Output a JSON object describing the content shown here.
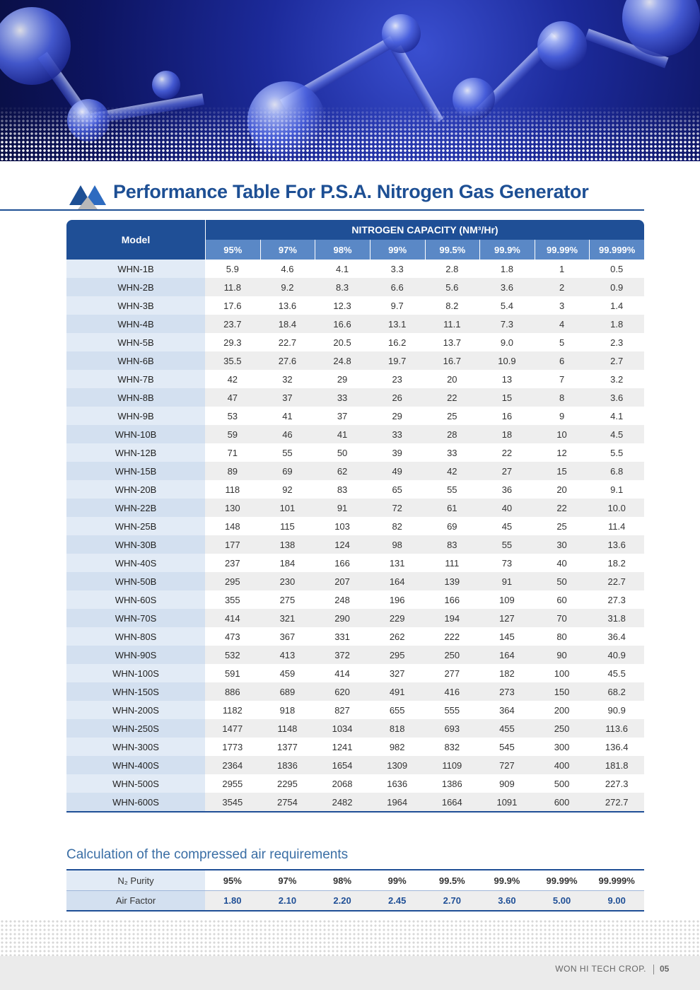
{
  "header": {
    "title": "Performance Table For P.S.A. Nitrogen Gas Generator"
  },
  "table": {
    "model_header": "Model",
    "capacity_header": "NITROGEN CAPACITY (NM³/Hr)",
    "purities": [
      "95%",
      "97%",
      "98%",
      "99%",
      "99.5%",
      "99.9%",
      "99.99%",
      "99.999%"
    ],
    "rows": [
      [
        "WHN-1B",
        "5.9",
        "4.6",
        "4.1",
        "3.3",
        "2.8",
        "1.8",
        "1",
        "0.5"
      ],
      [
        "WHN-2B",
        "11.8",
        "9.2",
        "8.3",
        "6.6",
        "5.6",
        "3.6",
        "2",
        "0.9"
      ],
      [
        "WHN-3B",
        "17.6",
        "13.6",
        "12.3",
        "9.7",
        "8.2",
        "5.4",
        "3",
        "1.4"
      ],
      [
        "WHN-4B",
        "23.7",
        "18.4",
        "16.6",
        "13.1",
        "11.1",
        "7.3",
        "4",
        "1.8"
      ],
      [
        "WHN-5B",
        "29.3",
        "22.7",
        "20.5",
        "16.2",
        "13.7",
        "9.0",
        "5",
        "2.3"
      ],
      [
        "WHN-6B",
        "35.5",
        "27.6",
        "24.8",
        "19.7",
        "16.7",
        "10.9",
        "6",
        "2.7"
      ],
      [
        "WHN-7B",
        "42",
        "32",
        "29",
        "23",
        "20",
        "13",
        "7",
        "3.2"
      ],
      [
        "WHN-8B",
        "47",
        "37",
        "33",
        "26",
        "22",
        "15",
        "8",
        "3.6"
      ],
      [
        "WHN-9B",
        "53",
        "41",
        "37",
        "29",
        "25",
        "16",
        "9",
        "4.1"
      ],
      [
        "WHN-10B",
        "59",
        "46",
        "41",
        "33",
        "28",
        "18",
        "10",
        "4.5"
      ],
      [
        "WHN-12B",
        "71",
        "55",
        "50",
        "39",
        "33",
        "22",
        "12",
        "5.5"
      ],
      [
        "WHN-15B",
        "89",
        "69",
        "62",
        "49",
        "42",
        "27",
        "15",
        "6.8"
      ],
      [
        "WHN-20B",
        "118",
        "92",
        "83",
        "65",
        "55",
        "36",
        "20",
        "9.1"
      ],
      [
        "WHN-22B",
        "130",
        "101",
        "91",
        "72",
        "61",
        "40",
        "22",
        "10.0"
      ],
      [
        "WHN-25B",
        "148",
        "115",
        "103",
        "82",
        "69",
        "45",
        "25",
        "11.4"
      ],
      [
        "WHN-30B",
        "177",
        "138",
        "124",
        "98",
        "83",
        "55",
        "30",
        "13.6"
      ],
      [
        "WHN-40S",
        "237",
        "184",
        "166",
        "131",
        "111",
        "73",
        "40",
        "18.2"
      ],
      [
        "WHN-50B",
        "295",
        "230",
        "207",
        "164",
        "139",
        "91",
        "50",
        "22.7"
      ],
      [
        "WHN-60S",
        "355",
        "275",
        "248",
        "196",
        "166",
        "109",
        "60",
        "27.3"
      ],
      [
        "WHN-70S",
        "414",
        "321",
        "290",
        "229",
        "194",
        "127",
        "70",
        "31.8"
      ],
      [
        "WHN-80S",
        "473",
        "367",
        "331",
        "262",
        "222",
        "145",
        "80",
        "36.4"
      ],
      [
        "WHN-90S",
        "532",
        "413",
        "372",
        "295",
        "250",
        "164",
        "90",
        "40.9"
      ],
      [
        "WHN-100S",
        "591",
        "459",
        "414",
        "327",
        "277",
        "182",
        "100",
        "45.5"
      ],
      [
        "WHN-150S",
        "886",
        "689",
        "620",
        "491",
        "416",
        "273",
        "150",
        "68.2"
      ],
      [
        "WHN-200S",
        "1182",
        "918",
        "827",
        "655",
        "555",
        "364",
        "200",
        "90.9"
      ],
      [
        "WHN-250S",
        "1477",
        "1148",
        "1034",
        "818",
        "693",
        "455",
        "250",
        "113.6"
      ],
      [
        "WHN-300S",
        "1773",
        "1377",
        "1241",
        "982",
        "832",
        "545",
        "300",
        "136.4"
      ],
      [
        "WHN-400S",
        "2364",
        "1836",
        "1654",
        "1309",
        "1109",
        "727",
        "400",
        "181.8"
      ],
      [
        "WHN-500S",
        "2955",
        "2295",
        "2068",
        "1636",
        "1386",
        "909",
        "500",
        "227.3"
      ],
      [
        "WHN-600S",
        "3545",
        "2754",
        "2482",
        "1964",
        "1664",
        "1091",
        "600",
        "272.7"
      ]
    ]
  },
  "air_table": {
    "title": "Calculation of the compressed air requirements",
    "purity_label": "N₂ Purity",
    "purities": [
      "95%",
      "97%",
      "98%",
      "99%",
      "99.5%",
      "99.9%",
      "99.99%",
      "99.999%"
    ],
    "factor_label": "Air Factor",
    "factors": [
      "1.80",
      "2.10",
      "2.20",
      "2.45",
      "2.70",
      "3.60",
      "5.00",
      "9.00"
    ]
  },
  "footer": {
    "company": "WON HI TECH CROP.",
    "page": "05"
  }
}
